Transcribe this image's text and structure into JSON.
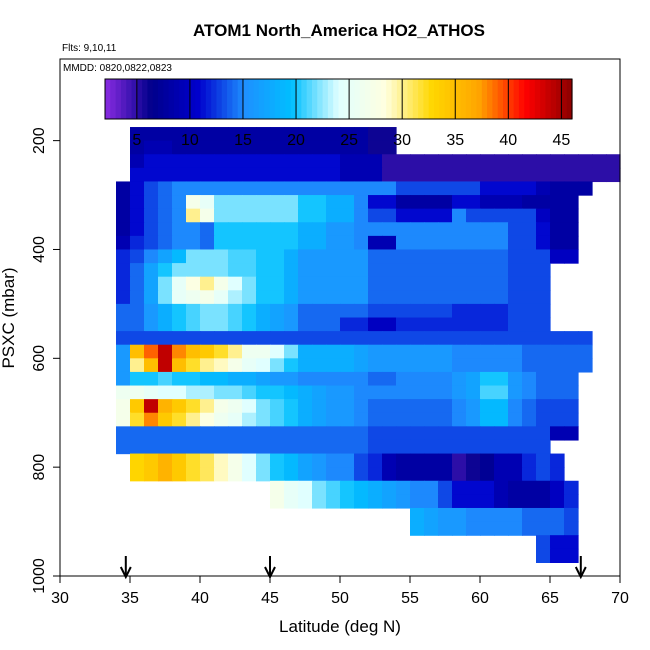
{
  "chart_data": {
    "type": "heatmap",
    "title": "ATOM1 North_America HO2_ATHOS",
    "flights_label": "Flts: 9,10,11",
    "dates_label": "MMDD: 0820,0822,0823",
    "xlabel": "Latitude (deg N)",
    "ylabel": "PSXC (mbar)",
    "xlim": [
      30,
      70
    ],
    "ylim": [
      1000,
      50
    ],
    "y_reversed": true,
    "xticks": [
      "30",
      "35",
      "40",
      "45",
      "50",
      "55",
      "60",
      "65",
      "70"
    ],
    "yticks": [
      "200",
      "400",
      "600",
      "800",
      "1000"
    ],
    "colorbar": {
      "range": [
        2,
        46
      ],
      "ticks": [
        "5",
        "10",
        "15",
        "20",
        "25",
        "30",
        "35",
        "40",
        "45"
      ],
      "colors": [
        "#8a2be2",
        "#00008b",
        "#0000cd",
        "#1e90ff",
        "#00bfff",
        "#e0ffff",
        "#ffffe0",
        "#ffd700",
        "#ffa500",
        "#ff0000",
        "#8b0000"
      ]
    },
    "arrows_x": [
      34.7,
      45.0,
      67.2
    ],
    "lat_bin": 1,
    "pressure_bin": 25,
    "grid": false,
    "cells": [
      [
        35,
        187.5,
        [
          8,
          8,
          8,
          8,
          8,
          8,
          8,
          8,
          8,
          8,
          8,
          8,
          8,
          8,
          8,
          8,
          8,
          6,
          6
        ]
      ],
      [
        35,
        212.5,
        [
          8,
          9,
          9,
          8,
          8,
          8,
          8,
          8,
          8,
          8,
          8,
          8,
          8,
          8,
          8,
          8,
          8,
          6,
          6
        ]
      ],
      [
        35,
        237.5,
        [
          9,
          11,
          11,
          11,
          11,
          11,
          11,
          11,
          11,
          11,
          11,
          11,
          11,
          11,
          11,
          9,
          9,
          9,
          5,
          5,
          5,
          5,
          5,
          5,
          5,
          5,
          5,
          5,
          5,
          5,
          5,
          5,
          5,
          5,
          5
        ]
      ],
      [
        35,
        262.5,
        [
          11,
          11,
          11,
          11,
          11,
          11,
          11,
          11,
          11,
          11,
          11,
          11,
          11,
          11,
          11,
          9,
          9,
          9,
          5,
          5,
          5,
          5,
          5,
          5,
          5,
          5,
          5,
          5,
          5,
          5,
          5,
          5,
          5,
          5,
          5
        ]
      ],
      [
        34,
        287.5,
        [
          8,
          11,
          13,
          14,
          15,
          15,
          15,
          15,
          15,
          15,
          15,
          15,
          15,
          15,
          15,
          15,
          15,
          15,
          15,
          15,
          13,
          13,
          13,
          13,
          13,
          13,
          11,
          11,
          11,
          11,
          9,
          8,
          8,
          8
        ]
      ],
      [
        34,
        312.5,
        [
          8,
          11,
          13,
          14,
          15,
          27,
          25,
          22,
          22,
          22,
          22,
          22,
          22,
          20,
          20,
          18,
          18,
          15,
          11,
          11,
          8,
          8,
          8,
          8,
          11,
          11,
          9,
          9,
          9,
          8,
          8,
          8,
          8
        ]
      ],
      [
        34,
        337.5,
        [
          8,
          11,
          13,
          14,
          15,
          30,
          27,
          22,
          22,
          22,
          22,
          22,
          22,
          20,
          20,
          18,
          18,
          15,
          13,
          13,
          11,
          11,
          11,
          11,
          15,
          13,
          13,
          13,
          13,
          13,
          10,
          8,
          8
        ]
      ],
      [
        34,
        362.5,
        [
          8,
          11,
          13,
          14,
          15,
          15,
          14,
          20,
          20,
          20,
          20,
          20,
          20,
          18,
          18,
          16,
          16,
          15,
          15,
          15,
          15,
          15,
          15,
          15,
          15,
          15,
          15,
          15,
          13,
          13,
          11,
          8,
          8
        ]
      ],
      [
        34,
        387.5,
        [
          9,
          12,
          13,
          14,
          15,
          15,
          14,
          20,
          20,
          20,
          20,
          20,
          20,
          18,
          18,
          16,
          16,
          15,
          9,
          9,
          15,
          15,
          15,
          15,
          15,
          15,
          15,
          15,
          13,
          13,
          11,
          8,
          8
        ]
      ],
      [
        34,
        412.5,
        [
          12,
          13,
          15,
          17,
          19,
          22,
          22,
          22,
          21,
          21,
          20,
          20,
          18,
          16,
          16,
          16,
          16,
          16,
          14,
          14,
          14,
          14,
          14,
          14,
          14,
          14,
          14,
          14,
          13,
          13,
          13,
          10,
          10
        ]
      ],
      [
        34,
        437.5,
        [
          12,
          14,
          17,
          20,
          22,
          22,
          22,
          22,
          21,
          21,
          20,
          20,
          18,
          16,
          16,
          16,
          16,
          16,
          14,
          14,
          14,
          14,
          14,
          14,
          14,
          14,
          14,
          14,
          13,
          13,
          13
        ]
      ],
      [
        34,
        462.5,
        [
          12,
          14,
          17,
          22,
          25,
          28,
          30,
          27,
          24,
          22,
          20,
          20,
          18,
          16,
          16,
          16,
          16,
          16,
          14,
          14,
          14,
          14,
          14,
          14,
          14,
          14,
          14,
          14,
          13,
          13,
          13
        ]
      ],
      [
        34,
        487.5,
        [
          12,
          14,
          17,
          22,
          25,
          26,
          27,
          25,
          23,
          22,
          20,
          20,
          18,
          16,
          16,
          16,
          16,
          16,
          14,
          14,
          14,
          14,
          14,
          14,
          14,
          14,
          14,
          14,
          13,
          13,
          13
        ]
      ],
      [
        34,
        512.5,
        [
          14,
          14,
          16,
          18,
          20,
          21,
          22,
          22,
          21,
          20,
          18,
          17,
          16,
          14,
          14,
          14,
          14,
          14,
          13,
          13,
          13,
          13,
          13,
          13,
          12,
          12,
          12,
          12,
          13,
          13,
          13
        ]
      ],
      [
        34,
        537.5,
        [
          14,
          14,
          16,
          18,
          20,
          21,
          22,
          22,
          21,
          20,
          18,
          17,
          16,
          14,
          14,
          14,
          12,
          12,
          10,
          10,
          12,
          12,
          12,
          12,
          12,
          12,
          12,
          12,
          13,
          13,
          13
        ]
      ],
      [
        34,
        562.5,
        [
          13,
          13,
          13,
          13,
          13,
          13,
          13,
          13,
          13,
          13,
          13,
          13,
          13,
          13,
          13,
          13,
          13,
          13,
          13,
          13,
          13,
          13,
          13,
          13,
          13,
          13,
          13,
          13,
          13,
          13,
          13,
          13,
          13,
          13
        ]
      ],
      [
        34,
        587.5,
        [
          16,
          35,
          39,
          44,
          38,
          35,
          34,
          32,
          30,
          26,
          26,
          24,
          22,
          18,
          18,
          18,
          18,
          17,
          16,
          16,
          16,
          16,
          16,
          16,
          15,
          15,
          15,
          15,
          15,
          14,
          14,
          14,
          14,
          14
        ]
      ],
      [
        34,
        612.5,
        [
          16,
          30,
          35,
          44,
          35,
          32,
          30,
          29,
          27,
          25,
          24,
          22,
          20,
          18,
          18,
          18,
          18,
          17,
          16,
          16,
          16,
          16,
          16,
          16,
          15,
          15,
          15,
          15,
          15,
          14,
          14,
          14,
          14,
          14
        ]
      ],
      [
        34,
        637.5,
        [
          16,
          20,
          20,
          21,
          20,
          20,
          19,
          19,
          18,
          18,
          17,
          16,
          16,
          15,
          15,
          15,
          15,
          15,
          14,
          14,
          15,
          15,
          15,
          15,
          16,
          17,
          20,
          20,
          16,
          15,
          14,
          14,
          14
        ]
      ],
      [
        34,
        662.5,
        [
          26,
          26,
          25,
          24,
          24,
          23,
          23,
          22,
          22,
          21,
          20,
          20,
          19,
          18,
          17,
          16,
          16,
          15,
          15,
          15,
          15,
          15,
          15,
          15,
          16,
          17,
          21,
          21,
          16,
          15,
          14,
          14,
          14
        ]
      ],
      [
        34,
        687.5,
        [
          27,
          34,
          44,
          36,
          34,
          32,
          30,
          27,
          26,
          24,
          22,
          21,
          20,
          18,
          17,
          16,
          16,
          15,
          14,
          14,
          14,
          14,
          14,
          14,
          15,
          16,
          19,
          19,
          15,
          14,
          13,
          13,
          13
        ]
      ],
      [
        34,
        712.5,
        [
          27,
          32,
          38,
          34,
          32,
          30,
          28,
          26,
          25,
          23,
          22,
          21,
          20,
          18,
          17,
          16,
          16,
          15,
          14,
          14,
          14,
          14,
          14,
          14,
          15,
          16,
          19,
          19,
          15,
          14,
          13,
          13,
          13
        ]
      ],
      [
        34,
        737.5,
        [
          14,
          14,
          14,
          14,
          14,
          14,
          14,
          14,
          14,
          14,
          14,
          14,
          14,
          14,
          14,
          14,
          14,
          14,
          13,
          13,
          13,
          13,
          13,
          13,
          13,
          13,
          13,
          13,
          13,
          13,
          13,
          9,
          9
        ]
      ],
      [
        34,
        762.5,
        [
          14,
          14,
          14,
          14,
          14,
          14,
          14,
          14,
          14,
          14,
          14,
          14,
          14,
          14,
          14,
          14,
          14,
          14,
          13,
          13,
          13,
          13,
          13,
          13,
          13,
          13,
          13,
          13,
          13,
          13,
          13
        ]
      ],
      [
        35,
        787.5,
        [
          33,
          34,
          36,
          34,
          32,
          31,
          29,
          27,
          24,
          22,
          20,
          19,
          17,
          16,
          15,
          15,
          13,
          12,
          9,
          8,
          8,
          8,
          8,
          5,
          6,
          7,
          9,
          9,
          12,
          13,
          12
        ]
      ],
      [
        35,
        812.5,
        [
          33,
          34,
          36,
          34,
          32,
          31,
          29,
          27,
          24,
          22,
          20,
          19,
          17,
          16,
          15,
          15,
          13,
          12,
          9,
          8,
          8,
          8,
          8,
          5,
          6,
          7,
          9,
          9,
          12,
          13,
          12
        ]
      ],
      [
        45,
        837.5,
        [
          27,
          25,
          24,
          22,
          21,
          20,
          19,
          18,
          17,
          16,
          15,
          15,
          13,
          11,
          11,
          11,
          9,
          8,
          8,
          8,
          10,
          12
        ]
      ],
      [
        45,
        862.5,
        [
          27,
          25,
          24,
          22,
          21,
          20,
          19,
          18,
          17,
          16,
          15,
          15,
          13,
          11,
          11,
          11,
          9,
          8,
          8,
          8,
          10,
          12
        ]
      ],
      [
        55,
        887.5,
        [
          18,
          17,
          16,
          16,
          15,
          15,
          15,
          15,
          14,
          14,
          14,
          13
        ]
      ],
      [
        55,
        912.5,
        [
          18,
          17,
          16,
          16,
          15,
          15,
          15,
          15,
          14,
          14,
          14,
          13
        ]
      ],
      [
        64,
        937.5,
        [
          13,
          11,
          11
        ]
      ],
      [
        64,
        962.5,
        [
          13,
          11,
          11
        ]
      ]
    ]
  }
}
